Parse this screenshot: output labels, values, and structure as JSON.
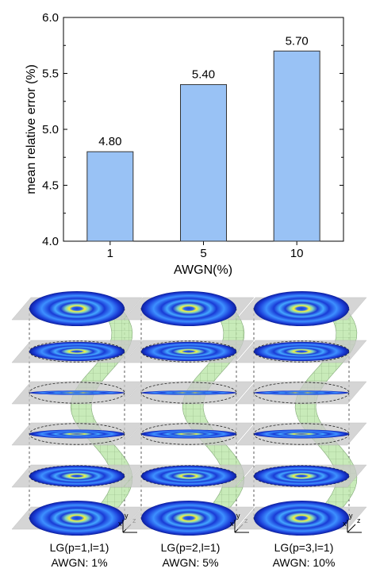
{
  "chart_data": {
    "type": "bar",
    "categories": [
      "1",
      "5",
      "10"
    ],
    "values": [
      4.8,
      5.4,
      5.7
    ],
    "data_labels": [
      "4.80",
      "5.40",
      "5.70"
    ],
    "xlabel": "AWGN(%)",
    "ylabel": "mean relative error (%)",
    "ylim": [
      4.0,
      6.0
    ],
    "yticks": [
      "4.0",
      "4.5",
      "5.0",
      "5.5",
      "6.0"
    ],
    "grid": false,
    "bar_color": "#99c2f5",
    "bar_edge_color": "#333333"
  },
  "illustrations": [
    {
      "mode": "LG(p=1,l=1)",
      "noise": "AWGN: 1%",
      "layers": 6
    },
    {
      "mode": "LG(p=2,l=1)",
      "noise": "AWGN: 5%",
      "layers": 6
    },
    {
      "mode": "LG(p=3,l=1)",
      "noise": "AWGN: 10%",
      "layers": 6
    }
  ],
  "axis_labels_3d": {
    "x": "x",
    "y": "y",
    "z": "z"
  },
  "colors": {
    "beam_outer": "#1a3bd6",
    "beam_ring": "#44a8ff",
    "beam_core": "#f6f23a",
    "plane": "#c8c8c8",
    "helix": "#b7e4a6"
  }
}
